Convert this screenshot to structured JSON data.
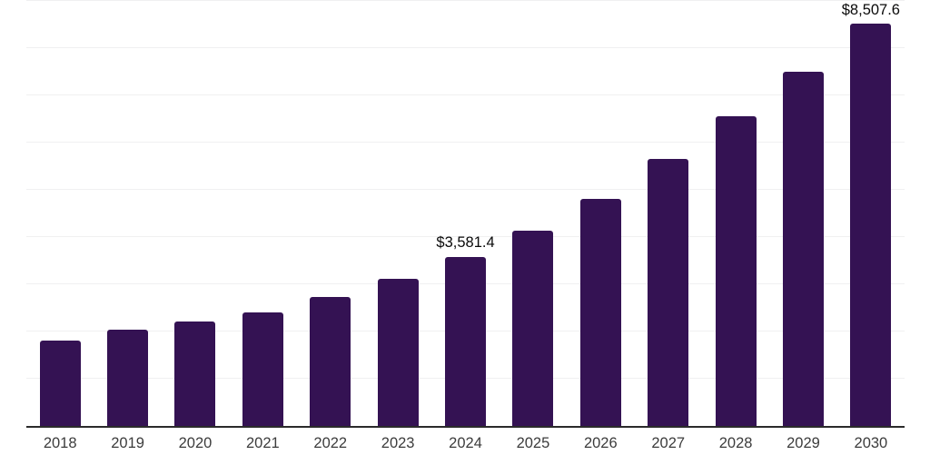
{
  "chart": {
    "background_color": "#ffffff",
    "bar_color": "#341253",
    "axis_line_color": "#2b2b2b",
    "gridline_color": "#f0f0f1",
    "year_label_color": "#3c3c3c",
    "value_label_color": "#0a0a0a"
  },
  "chart_data": {
    "type": "bar",
    "title": "",
    "xlabel": "",
    "ylabel": "",
    "categories": [
      "2018",
      "2019",
      "2020",
      "2021",
      "2022",
      "2023",
      "2024",
      "2025",
      "2026",
      "2027",
      "2028",
      "2029",
      "2030"
    ],
    "values": [
      1815,
      2040,
      2200,
      2410,
      2720,
      3120,
      3581.4,
      4130,
      4810,
      5650,
      6545,
      7500,
      8507.6
    ],
    "labeled_points": {
      "2024": "$3,581.4",
      "2030": "$8,507.6"
    },
    "ylim": [
      0,
      9000
    ],
    "grid": "horizontal",
    "grid_step": 1000,
    "y_axis_tick_labels_visible": false,
    "legend": null
  }
}
